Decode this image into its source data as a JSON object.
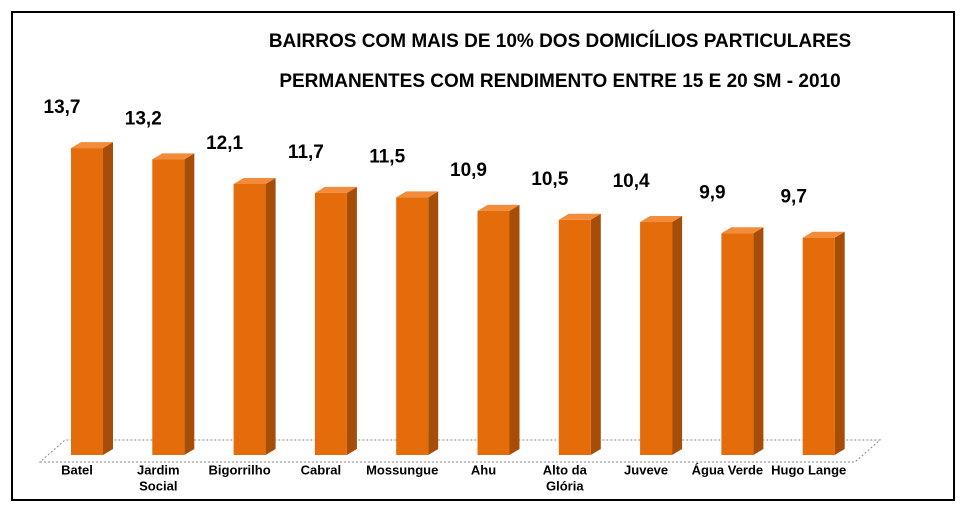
{
  "chart_data": {
    "type": "bar3d",
    "title_lines": [
      "BAIRROS COM MAIS DE 10% DOS DOMICÍLIOS PARTICULARES",
      "PERMANENTES COM RENDIMENTO ENTRE 15 E 20 SM  - 2010"
    ],
    "categories": [
      [
        "Batel"
      ],
      [
        "Jardim",
        "Social"
      ],
      [
        "Bigorrilho"
      ],
      [
        "Cabral"
      ],
      [
        "Mossungue"
      ],
      [
        "Ahu"
      ],
      [
        "Alto da",
        "Glória"
      ],
      [
        "Juveve"
      ],
      [
        "Água Verde"
      ],
      [
        "Hugo Lange"
      ]
    ],
    "values": [
      13.7,
      13.2,
      12.1,
      11.7,
      11.5,
      10.9,
      10.5,
      10.4,
      9.9,
      9.7
    ],
    "value_labels": [
      "13,7",
      "13,2",
      "12,1",
      "11,7",
      "11,5",
      "10,9",
      "10,5",
      "10,4",
      "9,9",
      "9,7"
    ],
    "color": "#e46c0a"
  }
}
